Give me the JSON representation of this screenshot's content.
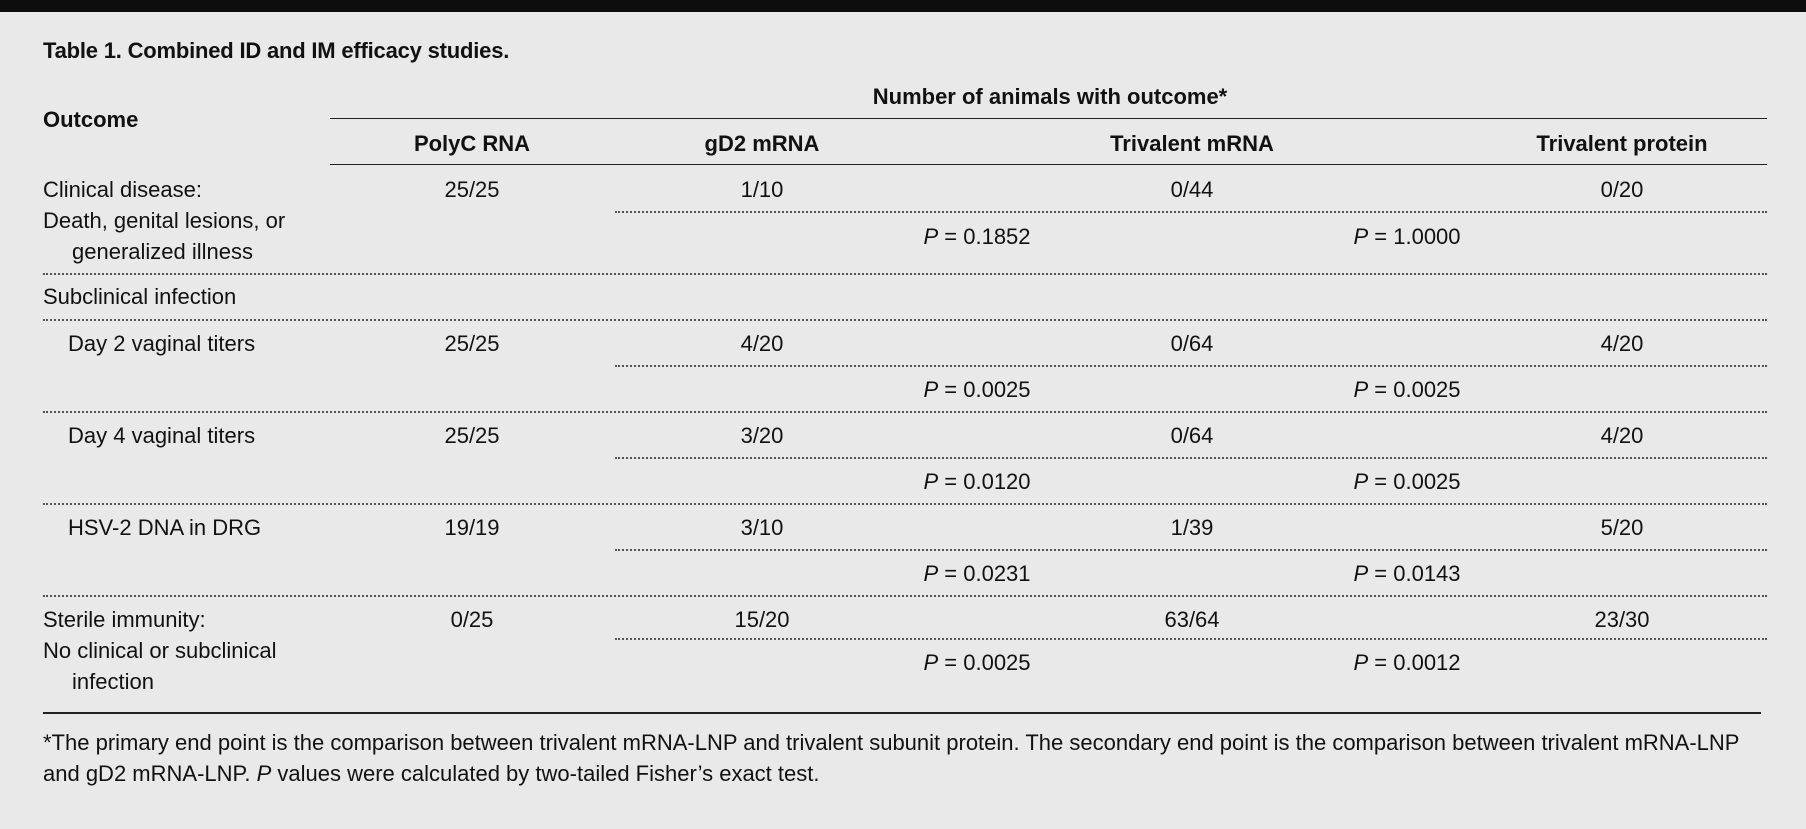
{
  "table": {
    "title": "Table 1. Combined ID and IM efficacy studies.",
    "row_header": "Outcome",
    "group_header": "Number of animals with outcome*",
    "columns": [
      "PolyC RNA",
      "gD2 mRNA",
      "Trivalent mRNA",
      "Trivalent protein"
    ],
    "rows": [
      {
        "label_lines": [
          "Clinical disease:",
          "Death, genital lesions, or",
          "generalized illness"
        ],
        "values": [
          "25/25",
          "1/10",
          "0/44",
          "0/20"
        ],
        "p_values": [
          "0.1852",
          "1.0000"
        ]
      },
      {
        "label_lines": [
          "Subclinical infection"
        ]
      },
      {
        "label_lines": [
          "Day 2 vaginal titers"
        ],
        "values": [
          "25/25",
          "4/20",
          "0/64",
          "4/20"
        ],
        "p_values": [
          "0.0025",
          "0.0025"
        ]
      },
      {
        "label_lines": [
          "Day 4 vaginal titers"
        ],
        "values": [
          "25/25",
          "3/20",
          "0/64",
          "4/20"
        ],
        "p_values": [
          "0.0120",
          "0.0025"
        ]
      },
      {
        "label_lines": [
          "HSV-2 DNA in DRG"
        ],
        "values": [
          "19/19",
          "3/10",
          "1/39",
          "5/20"
        ],
        "p_values": [
          "0.0231",
          "0.0143"
        ]
      },
      {
        "label_lines": [
          "Sterile immunity:",
          "No clinical or subclinical",
          "infection"
        ],
        "values": [
          "0/25",
          "15/20",
          "63/64",
          "23/30"
        ],
        "p_values": [
          "0.0025",
          "0.0012"
        ]
      }
    ],
    "p_prefix": "P",
    "p_equals": " = ",
    "footnote": {
      "part1": "*The primary end point is the comparison between trivalent mRNA-LNP and trivalent subunit protein. The secondary end point is the comparison between trivalent mRNA-LNP and gD2 mRNA-LNP. ",
      "p_italic": "P",
      "part2": " values were calculated by two-tailed Fisher’s exact test."
    }
  }
}
